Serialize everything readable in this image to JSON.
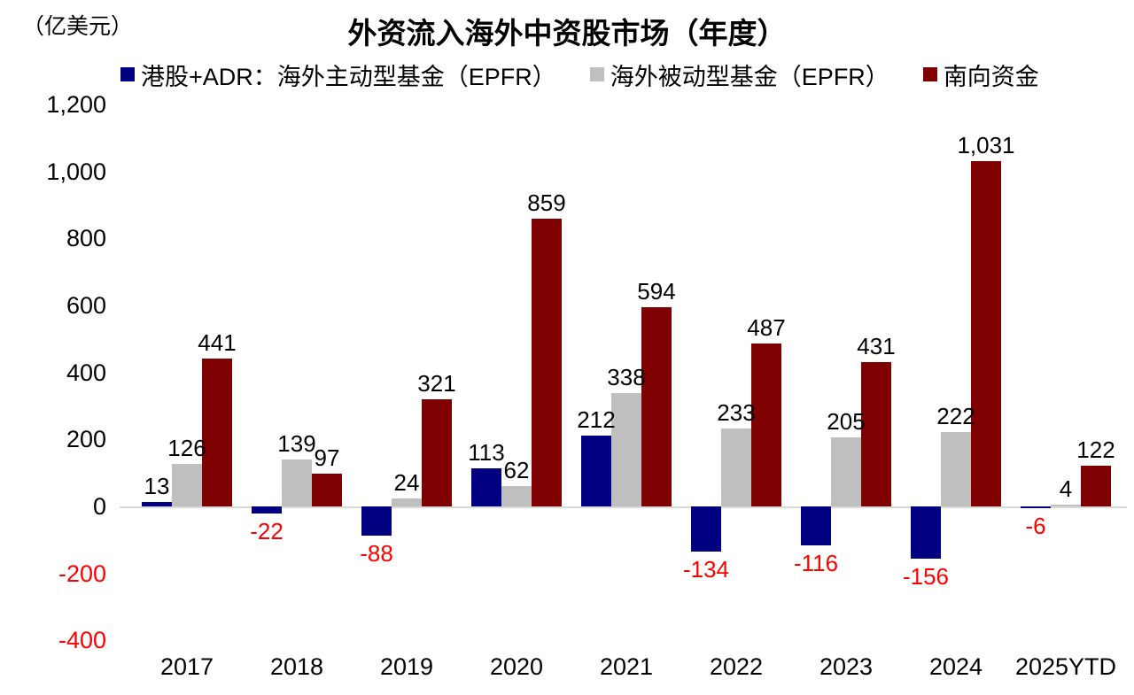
{
  "header": {
    "unit_label": "（亿美元）",
    "title": "外资流入海外中资股市场（年度）"
  },
  "chart_data": {
    "type": "bar",
    "title": "外资流入海外中资股市场（年度）",
    "ylabel": "（亿美元）",
    "xlabel": "",
    "categories": [
      "2017",
      "2018",
      "2019",
      "2020",
      "2021",
      "2022",
      "2023",
      "2024",
      "2025YTD"
    ],
    "series": [
      {
        "name": "港股+ADR：海外主动型基金（EPFR）",
        "color": "#000080",
        "values": [
          13,
          -22,
          -88,
          113,
          212,
          -134,
          -116,
          -156,
          -6
        ]
      },
      {
        "name": "海外被动型基金（EPFR）",
        "color": "#bfbfbf",
        "values": [
          126,
          139,
          24,
          62,
          338,
          233,
          205,
          222,
          4
        ]
      },
      {
        "name": "南向资金",
        "color": "#7e0000",
        "values": [
          441,
          97,
          321,
          859,
          594,
          487,
          431,
          1031,
          122
        ]
      }
    ],
    "yticks": [
      1200,
      1000,
      800,
      600,
      400,
      200,
      0,
      -200,
      -400
    ],
    "ylim": [
      -400,
      1200
    ],
    "grid": false,
    "legend_position": "top",
    "colors": {
      "positive_label": "#000000",
      "negative_label": "#ff0000",
      "baseline": "#d9d9d9",
      "background": "#ffffff"
    }
  }
}
